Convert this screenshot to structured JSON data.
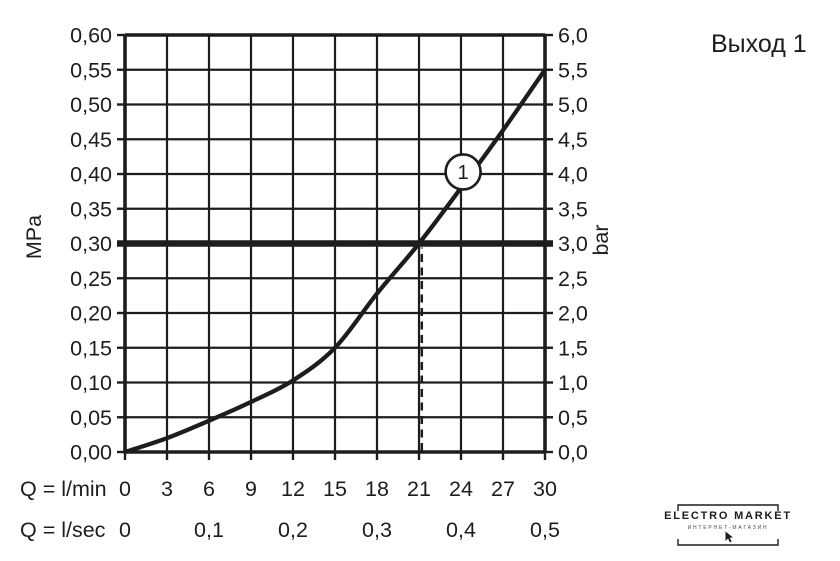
{
  "title": "Выход 1",
  "chart_data": {
    "type": "line",
    "title": "Выход 1",
    "xlabel_primary": "Q = l/min",
    "xlabel_secondary": "Q = l/sec",
    "ylabel_left": "MPa",
    "ylabel_right": "bar",
    "xlim": [
      0,
      30
    ],
    "ylim_mpa": [
      0,
      0.6
    ],
    "ylim_bar": [
      0,
      6.0
    ],
    "grid": true,
    "x_ticks_lmin": [
      0,
      3,
      6,
      9,
      12,
      15,
      18,
      21,
      24,
      27,
      30
    ],
    "x_ticks_lsec": [
      {
        "x": 0,
        "label": "0"
      },
      {
        "x": 6,
        "label": "0,1"
      },
      {
        "x": 12,
        "label": "0,2"
      },
      {
        "x": 18,
        "label": "0,3"
      },
      {
        "x": 24,
        "label": "0,4"
      },
      {
        "x": 30,
        "label": "0,5"
      }
    ],
    "y_ticks_mpa": [
      "0,00",
      "0,05",
      "0,10",
      "0,15",
      "0,20",
      "0,25",
      "0,30",
      "0,35",
      "0,40",
      "0,45",
      "0,50",
      "0,55",
      "0,60"
    ],
    "y_ticks_bar": [
      "0,0",
      "0,5",
      "1,0",
      "1,5",
      "2,0",
      "2,5",
      "3,0",
      "3,5",
      "4,0",
      "4,5",
      "5,0",
      "5,5",
      "6,0"
    ],
    "series": [
      {
        "name": "1",
        "x": [
          0,
          3,
          6,
          9,
          12,
          15,
          18,
          21,
          24,
          27,
          30
        ],
        "y": [
          0.0,
          0.02,
          0.045,
          0.072,
          0.103,
          0.15,
          0.228,
          0.3,
          0.38,
          0.463,
          0.55
        ]
      }
    ],
    "marker": {
      "label": "1",
      "x": 24.15,
      "y": 0.403
    },
    "reference_line_mpa": 0.3,
    "drop_line": {
      "x": 21.2,
      "to_y_mpa": 0.3
    }
  },
  "logo": {
    "name": "ELECTRO MARKET",
    "subtitle": "ИНТЕРНЕТ-МАГАЗИН"
  }
}
